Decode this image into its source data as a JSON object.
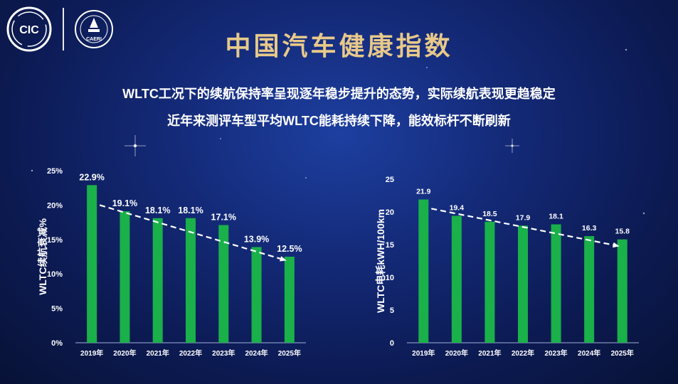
{
  "header": {
    "title": "中国汽车健康指数",
    "subtitle_1": "WLTC工况下的续航保持率呈现逐年稳步提升的态势，实际续航表现更趋稳定",
    "subtitle_2": "近年来测评车型平均WLTC能耗持续下降，能效标杆不断刷新",
    "logo_left_text": "CIC",
    "logo_right_text": "CAERI"
  },
  "colors": {
    "bar": "#1ab04a",
    "title": "#e8c98a",
    "text": "#ffffff"
  },
  "chart_data": [
    {
      "type": "bar",
      "ylabel": "WLTC续航衰减%",
      "categories": [
        "2019年",
        "2020年",
        "2021年",
        "2022年",
        "2023年",
        "2024年",
        "2025年"
      ],
      "values": [
        22.9,
        19.1,
        18.1,
        18.1,
        17.1,
        13.9,
        12.5
      ],
      "value_labels": [
        "22.9%",
        "19.1%",
        "18.1%",
        "18.1%",
        "17.1%",
        "13.9%",
        "12.5%"
      ],
      "ylim": [
        0,
        25
      ],
      "yticks": [
        0,
        5,
        10,
        15,
        20,
        25
      ],
      "ytick_labels": [
        "0%",
        "5%",
        "10%",
        "15%",
        "20%",
        "25%"
      ],
      "trend": {
        "from": 20.0,
        "to": 12.0,
        "style": "dashed-arrow"
      }
    },
    {
      "type": "bar",
      "ylabel": "WLTC电耗kWH/100km",
      "categories": [
        "2019年",
        "2020年",
        "2021年",
        "2022年",
        "2023年",
        "2024年",
        "2025年"
      ],
      "values": [
        21.9,
        19.4,
        18.5,
        17.9,
        18.1,
        16.3,
        15.8
      ],
      "value_labels": [
        "21.9",
        "19.4",
        "18.5",
        "17.9",
        "18.1",
        "16.3",
        "15.8"
      ],
      "ylim": [
        0,
        25
      ],
      "yticks": [
        0,
        5,
        10,
        15,
        20,
        25
      ],
      "ytick_labels": [
        "0",
        "5",
        "10",
        "15",
        "20",
        "25"
      ],
      "trend": {
        "from": 20.5,
        "to": 14.8,
        "style": "dashed-arrow"
      }
    }
  ]
}
